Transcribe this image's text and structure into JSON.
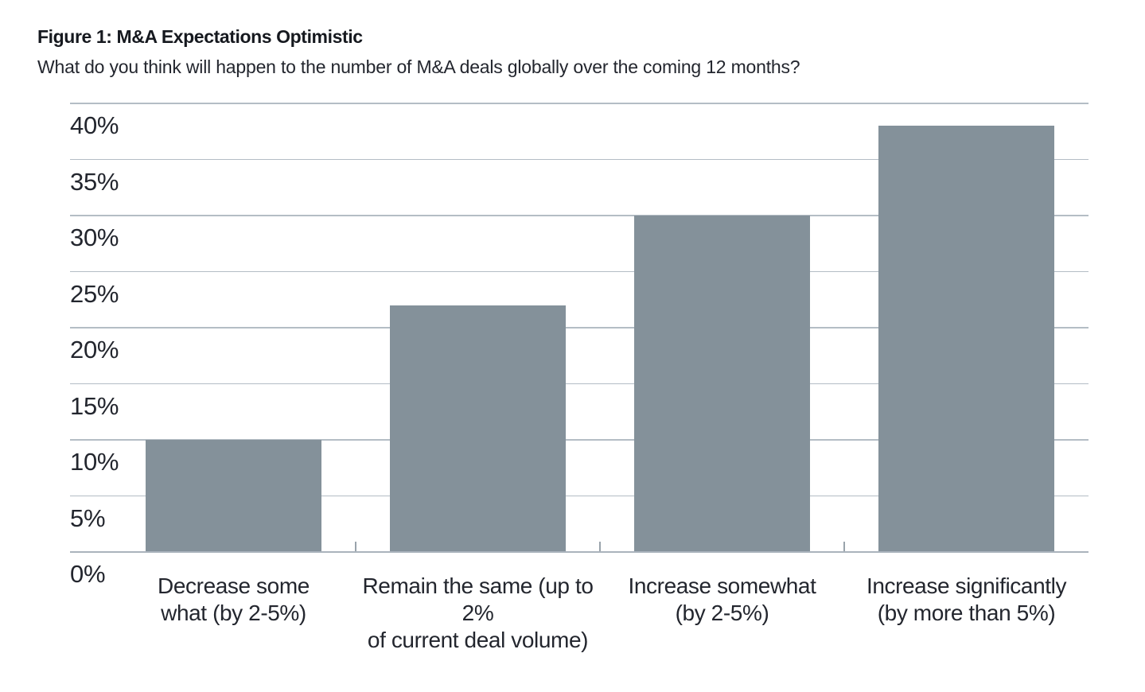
{
  "figure": {
    "title": "Figure 1: M&A Expectations Optimistic",
    "subtitle": "What do you think will happen to the number of M&A deals globally over the coming 12 months?"
  },
  "chart_data": {
    "type": "bar",
    "title": "Figure 1: M&A Expectations Optimistic",
    "subtitle": "What do you think will happen to the number of M&A deals globally over the coming 12 months?",
    "categories": [
      "Decrease some what (by 2-5%)",
      "Remain the same (up to 2% of current deal volume)",
      "Increase somewhat (by 2-5%)",
      "Increase significantly (by more than 5%)"
    ],
    "category_lines": [
      [
        "Decrease some",
        "what (by 2-5%)"
      ],
      [
        "Remain the same (up to 2%",
        "of current deal volume)"
      ],
      [
        "Increase somewhat",
        "(by 2-5%)"
      ],
      [
        "Increase significantly",
        "(by more than 5%)"
      ]
    ],
    "values": [
      10,
      22,
      30,
      38
    ],
    "unit": "%",
    "xlabel": "",
    "ylabel": "",
    "ylim": [
      0,
      40
    ],
    "ytick_interval": 5,
    "ytick_labels": [
      "0%",
      "5%",
      "10%",
      "15%",
      "20%",
      "25%",
      "30%",
      "35%",
      "40%"
    ],
    "grid": true,
    "legend": false,
    "bar_color": "#84919a",
    "gridline_color": "#b4bdc5",
    "text_color": "#23262e"
  }
}
